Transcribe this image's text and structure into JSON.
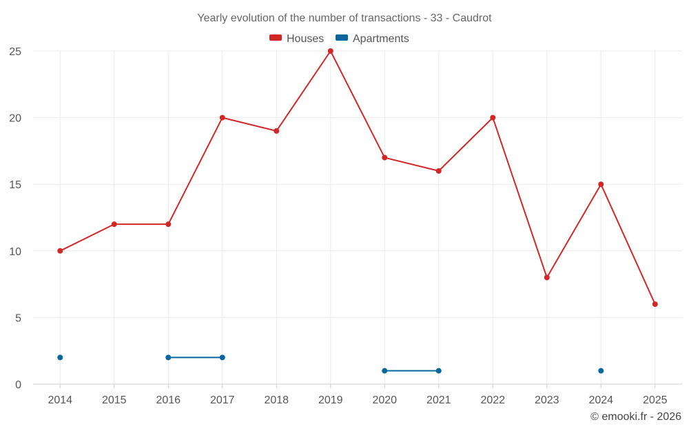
{
  "chart_data": {
    "type": "line",
    "title": "Yearly evolution of the number of transactions - 33 - Caudrot",
    "categories": [
      "2014",
      "2015",
      "2016",
      "2017",
      "2018",
      "2019",
      "2020",
      "2021",
      "2022",
      "2023",
      "2024",
      "2025"
    ],
    "series": [
      {
        "name": "Houses",
        "color": "#d32626",
        "values": [
          10,
          12,
          12,
          20,
          19,
          25,
          17,
          16,
          20,
          8,
          15,
          6
        ]
      },
      {
        "name": "Apartments",
        "color": "#05679e",
        "values": [
          2,
          null,
          2,
          2,
          null,
          null,
          1,
          1,
          null,
          null,
          1,
          null
        ]
      }
    ],
    "ylim": [
      0,
      25
    ],
    "yticks": [
      "0",
      "5",
      "10",
      "15",
      "20",
      "25"
    ],
    "xlabel": "",
    "ylabel": "",
    "grid": true,
    "legend_position": "top-center"
  },
  "credit": "© emooki.fr - 2026"
}
